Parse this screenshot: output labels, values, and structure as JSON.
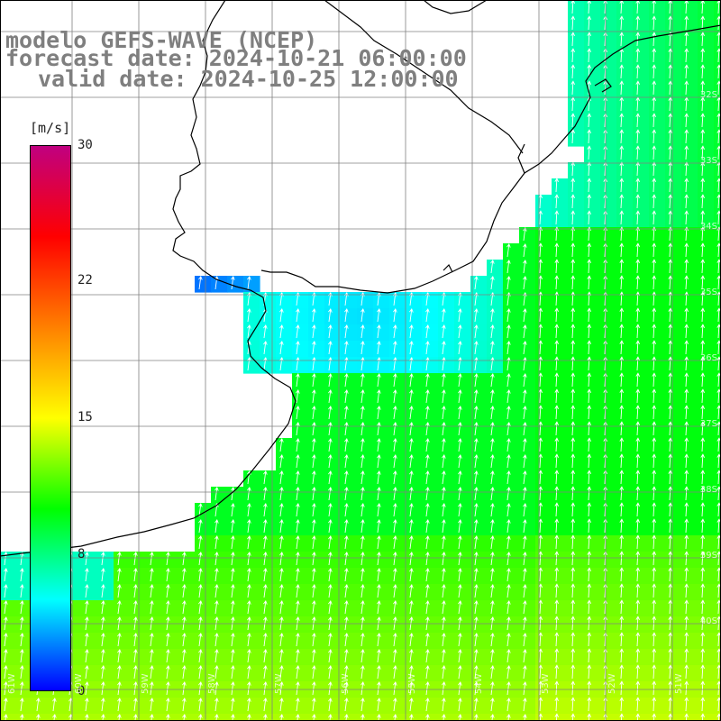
{
  "header": {
    "title_line1": "modelo GEFS-WAVE (NCEP)",
    "title_line2": "forecast date: 2024-10-21 06:00:00",
    "title_line3": "valid date: 2024-10-25 12:00:00"
  },
  "colorbar": {
    "unit": "[m/s]",
    "ticks": [
      "30",
      "22",
      "15",
      "8",
      "0"
    ],
    "tick_values": [
      30,
      22,
      15,
      8,
      0
    ],
    "min": 0,
    "max": 30,
    "colors": [
      "#0000ff",
      "#00ffff",
      "#00ff00",
      "#ffff00",
      "#ff8000",
      "#ff0000",
      "#c00080"
    ]
  },
  "map": {
    "variable": "wind speed with direction arrows",
    "land_color": "#ffffff",
    "coastline_color": "#000000",
    "grid_color": "#808080",
    "arrow_color": "#ffffff",
    "lon_labels": [
      "61W",
      "60W",
      "59W",
      "58W",
      "57W",
      "56W",
      "55W",
      "54W",
      "53W",
      "52W",
      "51W"
    ],
    "lat_labels": [
      "32S",
      "33S",
      "34S",
      "35S",
      "36S",
      "37S",
      "38S",
      "39S",
      "40S"
    ]
  }
}
